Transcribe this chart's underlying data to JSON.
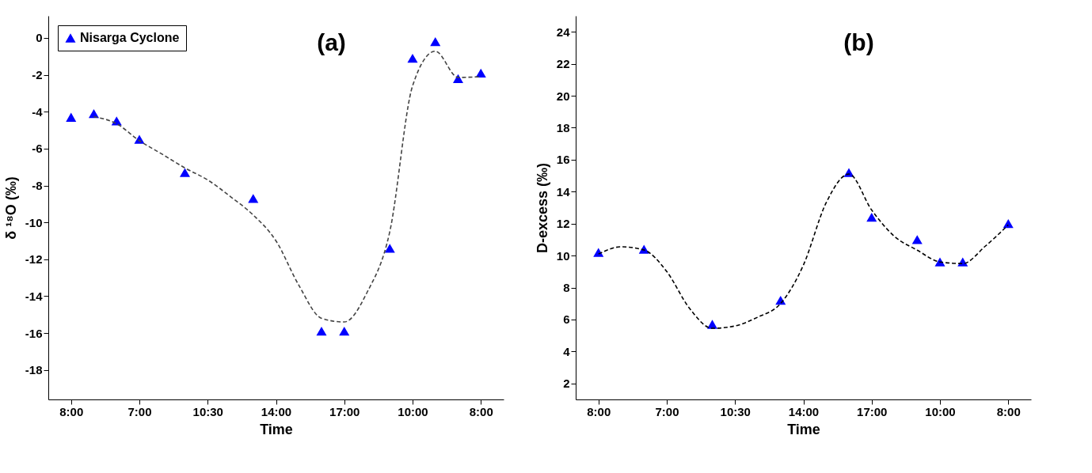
{
  "chart_data": [
    {
      "type": "scatter",
      "title": "(a)",
      "xlabel": "Time",
      "ylabel": "δ ¹⁸O (‰)",
      "legend": "top left",
      "categories": [
        "8:00",
        null,
        null,
        "7:00",
        null,
        null,
        "10:30",
        null,
        null,
        "14:00",
        null,
        null,
        "17:00",
        null,
        null,
        "10:00",
        null,
        null,
        "8:00"
      ],
      "ylim": [
        -19.6,
        1.2
      ],
      "yticks": [
        -18,
        -16,
        -14,
        -12,
        -10,
        -8,
        -6,
        -4,
        -2,
        0
      ],
      "series": [
        {
          "name": "Nisarga Cyclone",
          "marker": "triangle",
          "color": "#0000ff",
          "values": [
            -4.3,
            -4.1,
            -4.5,
            -5.5,
            null,
            -7.3,
            null,
            null,
            -8.7,
            null,
            null,
            -15.9,
            -15.9,
            null,
            -11.4,
            -1.1,
            -0.2,
            -2.2,
            -1.9
          ]
        },
        {
          "type": "line",
          "marker": "none",
          "line_style": "dashed",
          "color": "#444444",
          "values": [
            null,
            -4.27,
            -4.65,
            -5.57,
            -6.3,
            -7.05,
            -7.7,
            -8.6,
            -9.6,
            -11.0,
            -13.4,
            -15.2,
            -15.4,
            -13.8,
            -10.5,
            -2.6,
            -0.72,
            -2.14,
            -2.1
          ]
        }
      ]
    },
    {
      "type": "scatter",
      "title": "(b)",
      "xlabel": "Time",
      "ylabel": "D-excess (‰)",
      "legend": "top left",
      "categories": [
        "8:00",
        null,
        null,
        "7:00",
        null,
        null,
        "10:30",
        null,
        null,
        "14:00",
        null,
        null,
        "17:00",
        null,
        null,
        "10:00",
        null,
        null,
        "8:00"
      ],
      "ylim": [
        1,
        25
      ],
      "yticks": [
        2,
        4,
        6,
        8,
        10,
        12,
        14,
        16,
        18,
        20,
        22,
        24
      ],
      "series": [
        {
          "name": "Nisarga Cyclone",
          "marker": "triangle",
          "color": "#0000ff",
          "values": [
            10.2,
            null,
            10.4,
            null,
            null,
            5.7,
            null,
            null,
            7.2,
            null,
            null,
            15.2,
            12.4,
            null,
            11.0,
            9.6,
            9.6,
            null,
            12.0
          ]
        },
        {
          "type": "line",
          "marker": "none",
          "line_style": "dashed",
          "color": "#000000",
          "values": [
            10.1,
            10.55,
            10.35,
            9.0,
            6.7,
            5.45,
            5.6,
            6.15,
            7.0,
            9.4,
            13.3,
            15.1,
            12.85,
            11.2,
            10.34,
            9.6,
            9.5,
            10.6,
            11.92
          ]
        }
      ]
    }
  ]
}
